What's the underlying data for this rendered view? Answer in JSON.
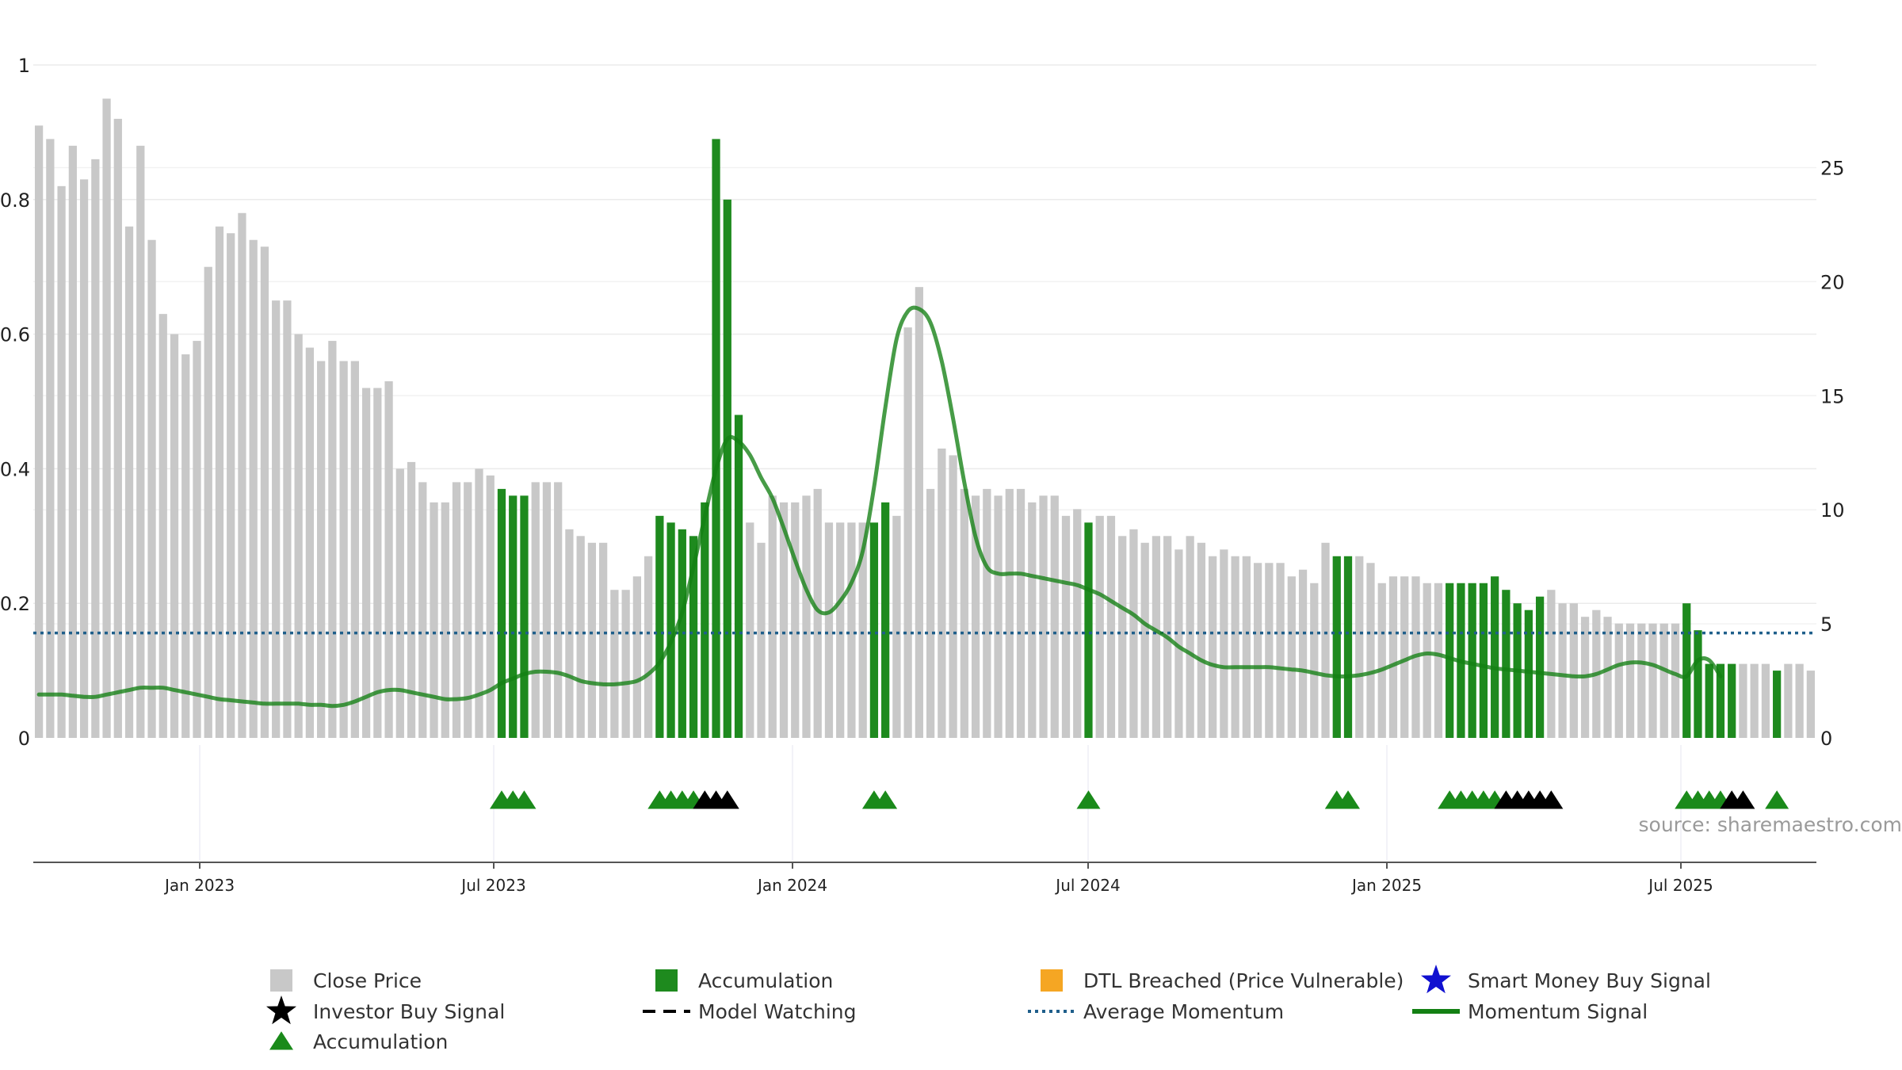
{
  "chart_data": {
    "type": "bar",
    "title": "",
    "x_ticks": [
      "Jan 2023",
      "Jul 2023",
      "Jan 2024",
      "Jul 2024",
      "Jan 2025",
      "Jul 2025"
    ],
    "left_axis": {
      "range": [
        0,
        1
      ],
      "ticks": [
        "0",
        "0.2",
        "0.4",
        "0.6",
        "0.8",
        "1"
      ]
    },
    "right_axis": {
      "range": [
        0,
        29.5
      ],
      "ticks": [
        "0",
        "5",
        "10",
        "15",
        "20",
        "25"
      ]
    },
    "grid": true,
    "legend_position": "bottom",
    "colors": {
      "close_price": "#c8c8c8",
      "accumulation_bar": "#1e8a1e",
      "accumulation_marker": "#1a8a1a",
      "investor_buy": "#000000",
      "dtl_breached": "#f5a623",
      "smart_money": "#1010d0",
      "average_momentum": "#1f5f8b",
      "momentum_signal": "#138013"
    },
    "close_price": [
      0.91,
      0.89,
      0.82,
      0.88,
      0.83,
      0.86,
      0.95,
      0.92,
      0.76,
      0.88,
      0.74,
      0.63,
      0.6,
      0.57,
      0.59,
      0.7,
      0.76,
      0.75,
      0.78,
      0.74,
      0.73,
      0.65,
      0.65,
      0.6,
      0.58,
      0.56,
      0.59,
      0.56,
      0.56,
      0.52,
      0.52,
      0.53,
      0.4,
      0.41,
      0.38,
      0.35,
      0.35,
      0.38,
      0.38,
      0.4,
      0.39,
      0.37,
      0.36,
      0.36,
      0.38,
      0.38,
      0.38,
      0.31,
      0.3,
      0.29,
      0.29,
      0.22,
      0.22,
      0.24,
      0.27,
      0.33,
      0.32,
      0.31,
      0.3,
      0.35,
      0.89,
      0.8,
      0.48,
      0.32,
      0.29,
      0.36,
      0.35,
      0.35,
      0.36,
      0.37,
      0.32,
      0.32,
      0.32,
      0.32,
      0.32,
      0.35,
      0.33,
      0.61,
      0.67,
      0.37,
      0.43,
      0.42,
      0.37,
      0.36,
      0.37,
      0.36,
      0.37,
      0.37,
      0.35,
      0.36,
      0.36,
      0.33,
      0.34,
      0.32,
      0.33,
      0.33,
      0.3,
      0.31,
      0.29,
      0.3,
      0.3,
      0.28,
      0.3,
      0.29,
      0.27,
      0.28,
      0.27,
      0.27,
      0.26,
      0.26,
      0.26,
      0.24,
      0.25,
      0.23,
      0.29,
      0.27,
      0.27,
      0.27,
      0.26,
      0.23,
      0.24,
      0.24,
      0.24,
      0.23,
      0.23,
      0.23,
      0.23,
      0.23,
      0.23,
      0.24,
      0.22,
      0.2,
      0.19,
      0.21,
      0.22,
      0.2,
      0.2,
      0.18,
      0.19,
      0.18,
      0.17,
      0.17,
      0.17,
      0.17,
      0.17,
      0.17,
      0.2,
      0.16,
      0.11,
      0.11,
      0.11,
      0.11,
      0.11,
      0.11,
      0.1,
      0.11,
      0.11,
      0.1
    ],
    "accumulation_bars": [
      41,
      42,
      43,
      55,
      56,
      57,
      58,
      59,
      60,
      61,
      62,
      74,
      75,
      93,
      115,
      116,
      125,
      126,
      127,
      128,
      129,
      130,
      131,
      132,
      133,
      146,
      147,
      148,
      149,
      150,
      154
    ],
    "momentum_signal": [
      1.9,
      1.9,
      1.9,
      1.85,
      1.8,
      1.8,
      1.9,
      2.0,
      2.1,
      2.2,
      2.2,
      2.2,
      2.1,
      2.0,
      1.9,
      1.8,
      1.7,
      1.65,
      1.6,
      1.55,
      1.5,
      1.5,
      1.5,
      1.5,
      1.45,
      1.45,
      1.4,
      1.45,
      1.6,
      1.8,
      2.0,
      2.1,
      2.1,
      2.0,
      1.9,
      1.8,
      1.7,
      1.7,
      1.75,
      1.9,
      2.1,
      2.4,
      2.6,
      2.8,
      2.9,
      2.9,
      2.85,
      2.7,
      2.5,
      2.4,
      2.35,
      2.35,
      2.4,
      2.5,
      2.8,
      3.3,
      4.2,
      5.5,
      7.5,
      9.7,
      11.8,
      13.1,
      13.0,
      12.4,
      11.4,
      10.5,
      9.2,
      7.8,
      6.5,
      5.6,
      5.5,
      6.0,
      6.8,
      8.2,
      11.0,
      14.5,
      17.5,
      18.7,
      18.8,
      18.2,
      16.5,
      14.0,
      11.2,
      8.8,
      7.5,
      7.2,
      7.2,
      7.2,
      7.1,
      7.0,
      6.9,
      6.8,
      6.7,
      6.5,
      6.3,
      6.0,
      5.7,
      5.4,
      5.0,
      4.7,
      4.4,
      4.0,
      3.7,
      3.4,
      3.2,
      3.1,
      3.1,
      3.1,
      3.1,
      3.1,
      3.05,
      3.0,
      2.95,
      2.85,
      2.75,
      2.7,
      2.7,
      2.75,
      2.85,
      3.0,
      3.2,
      3.4,
      3.6,
      3.7,
      3.65,
      3.5,
      3.35,
      3.25,
      3.15,
      3.05,
      3.0,
      2.95,
      2.9,
      2.85,
      2.8,
      2.75,
      2.7,
      2.7,
      2.8,
      3.0,
      3.2,
      3.3,
      3.3,
      3.2,
      3.0,
      2.8,
      2.7,
      3.4,
      3.4,
      2.7
    ],
    "average_momentum": 4.6,
    "accumulation_markers": [
      41,
      42,
      43,
      55,
      56,
      57,
      58,
      74,
      75,
      93,
      115,
      116,
      125,
      126,
      127,
      128,
      129,
      146,
      147,
      148,
      149,
      154
    ],
    "investor_buy_markers": [
      59,
      60,
      61,
      130,
      131,
      132,
      133,
      134,
      150,
      151
    ]
  },
  "legend": [
    {
      "id": "close",
      "label": "Close Price",
      "kind": "gray-square"
    },
    {
      "id": "accum-bar",
      "label": "Accumulation",
      "kind": "green-square"
    },
    {
      "id": "dtl",
      "label": "DTL Breached (Price Vulnerable)",
      "kind": "orange-square"
    },
    {
      "id": "smart",
      "label": "Smart Money Buy Signal",
      "kind": "blue-star"
    },
    {
      "id": "investor",
      "label": "Investor Buy Signal",
      "kind": "black-star"
    },
    {
      "id": "watching",
      "label": "Model Watching",
      "kind": "dash-line"
    },
    {
      "id": "avgmom",
      "label": "Average Momentum",
      "kind": "dotted-line"
    },
    {
      "id": "momsig",
      "label": "Momentum Signal",
      "kind": "green-line"
    },
    {
      "id": "accum-marker",
      "label": "Accumulation",
      "kind": "green-triangle"
    }
  ],
  "source_text": "source: sharemaestro.com"
}
